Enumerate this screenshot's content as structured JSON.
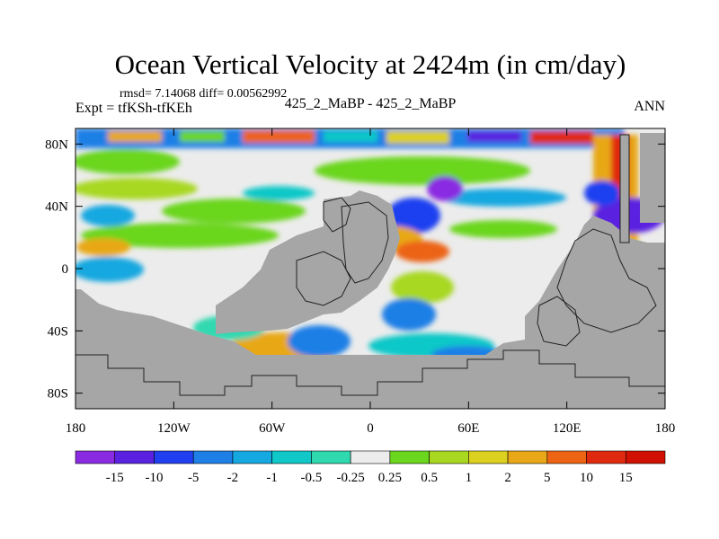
{
  "chart_data": {
    "type": "heatmap",
    "title": "Ocean Vertical Velocity at 2424m (in cm/day)",
    "stats_line": "rmsd= 7.14068 diff= 0.00562992",
    "left_label": "Expt = tfKSh-tfKEh",
    "center_label": "425_2_MaBP - 425_2_MaBP",
    "right_label": "ANN",
    "x_axis": {
      "range": [
        -180,
        180
      ],
      "ticks": [
        -180,
        -120,
        -60,
        0,
        60,
        120,
        180
      ],
      "tick_labels": [
        "180",
        "120W",
        "60W",
        "0",
        "60E",
        "120E",
        "180"
      ]
    },
    "y_axis": {
      "range": [
        -90,
        90
      ],
      "ticks": [
        80,
        40,
        0,
        -40,
        -80
      ],
      "tick_labels": [
        "80N",
        "40N",
        "0",
        "40S",
        "80S"
      ]
    },
    "colorbar": {
      "levels": [
        "-15",
        "-10",
        "-5",
        "-2",
        "-1",
        "-0.5",
        "-0.25",
        "0.25",
        "0.5",
        "1",
        "2",
        "5",
        "10",
        "15"
      ],
      "colors": [
        "#8a2be2",
        "#5a22e0",
        "#1f3ff0",
        "#1e7fe6",
        "#16a8e0",
        "#10c8c8",
        "#30d8b0",
        "#ececec",
        "#6ad61e",
        "#a8d820",
        "#dcd020",
        "#e8a818",
        "#ec6414",
        "#e02a10",
        "#d01000"
      ]
    },
    "colors": {
      "land": "#a6a6a6",
      "neutral": "#ececec",
      "coast": "#222222"
    }
  }
}
